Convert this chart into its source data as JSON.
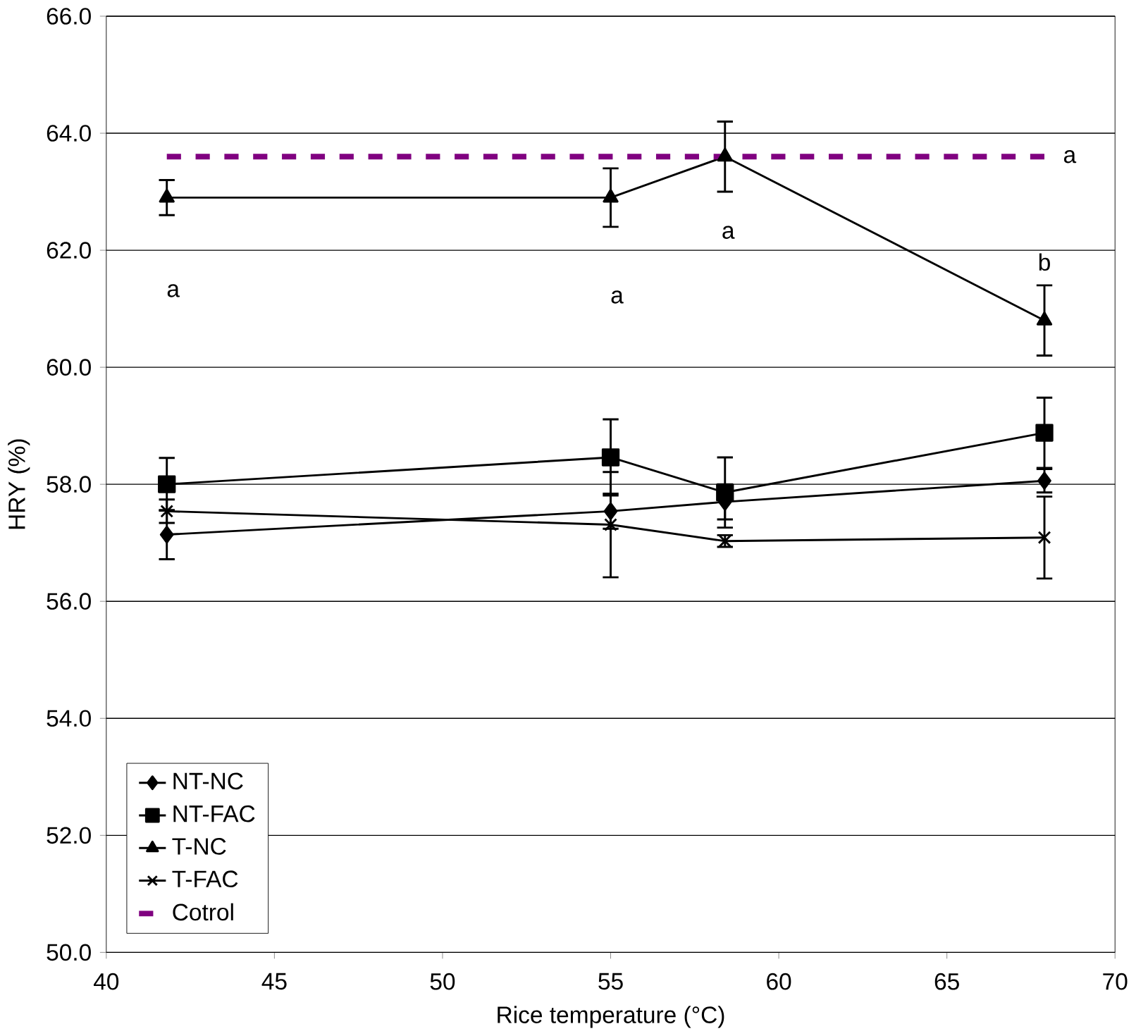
{
  "chart_data": {
    "type": "line",
    "xlabel": "Rice temperature (°C)",
    "ylabel": "HRY (%)",
    "x": [
      41.8,
      55.0,
      58.4,
      67.9
    ],
    "series": [
      {
        "name": "NT-NC",
        "color": "#000000",
        "marker": "diamond",
        "values": [
          57.14,
          57.54,
          57.7,
          58.06
        ],
        "errors": [
          0.42,
          0.3,
          0.3,
          0.2
        ]
      },
      {
        "name": "NT-FAC",
        "color": "#000000",
        "marker": "square",
        "values": [
          58.0,
          58.46,
          57.86,
          58.88
        ],
        "errors": [
          0.45,
          0.65,
          0.6,
          0.6
        ]
      },
      {
        "name": "T-NC",
        "color": "#000000",
        "marker": "triangle",
        "values": [
          62.9,
          62.9,
          63.6,
          60.8
        ],
        "errors": [
          0.3,
          0.5,
          0.6,
          0.6
        ]
      },
      {
        "name": "T-FAC",
        "color": "#000000",
        "marker": "cross",
        "values": [
          57.54,
          57.31,
          57.03,
          57.09
        ],
        "errors": [
          0.2,
          0.9,
          0.1,
          0.7
        ]
      },
      {
        "name": "Cotrol",
        "color": "#800080",
        "marker": "none",
        "line_style": "dashed",
        "x": [
          41.8,
          67.9
        ],
        "values": [
          63.6,
          63.6
        ]
      }
    ],
    "xlim": [
      40,
      70
    ],
    "xticks": [
      40,
      45,
      50,
      55,
      60,
      65,
      70
    ],
    "ylim": [
      50,
      66
    ],
    "yticks": [
      {
        "value": 50,
        "label": "50.0"
      },
      {
        "value": 52,
        "label": "52.0"
      },
      {
        "value": 54,
        "label": "54.0"
      },
      {
        "value": 56,
        "label": "56.0"
      },
      {
        "value": 58,
        "label": "58.0"
      },
      {
        "value": 60,
        "label": "60.0"
      },
      {
        "value": 62,
        "label": "62.0"
      },
      {
        "value": 64,
        "label": "64.0"
      },
      {
        "value": 66,
        "label": "66.0"
      }
    ],
    "grid": "y",
    "legend": "bottom left",
    "annotations": [
      "a",
      "a",
      "a",
      "b",
      "a"
    ]
  }
}
